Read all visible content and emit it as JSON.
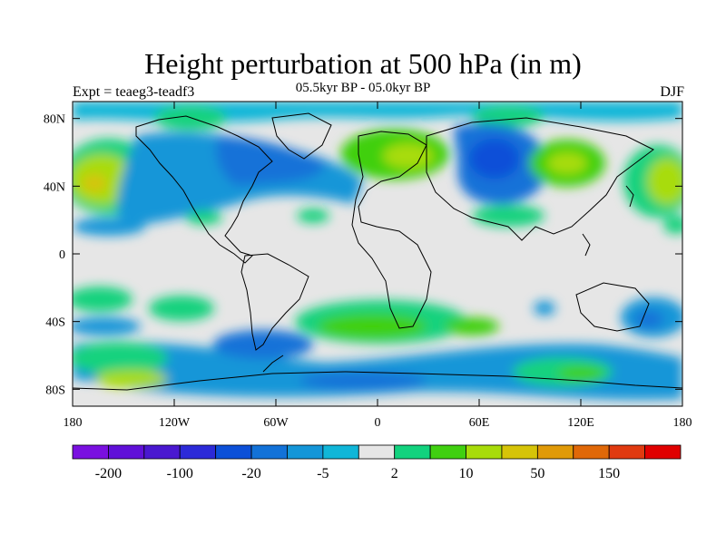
{
  "header": {
    "title": "Height perturbation at 500 hPa (in m)",
    "experiment": "Expt = teaeg3-teadf3",
    "period": "05.5kyr BP - 05.0kyr BP",
    "season": "DJF"
  },
  "map": {
    "variable": "500 hPa geopotential height anomaly",
    "projection": "cylindrical equidistant",
    "lon_range": [
      -180,
      180
    ],
    "lat_range": [
      -90,
      90
    ],
    "lat_ticks": [
      {
        "value": 80,
        "label": "80N"
      },
      {
        "value": 40,
        "label": "40N"
      },
      {
        "value": 0,
        "label": "0"
      },
      {
        "value": -40,
        "label": "40S"
      },
      {
        "value": -80,
        "label": "80S"
      }
    ],
    "lon_ticks": [
      {
        "value": -180,
        "label": "180"
      },
      {
        "value": -120,
        "label": "120W"
      },
      {
        "value": -60,
        "label": "60W"
      },
      {
        "value": 0,
        "label": "0"
      },
      {
        "value": 60,
        "label": "60E"
      },
      {
        "value": 120,
        "label": "120E"
      },
      {
        "value": 180,
        "label": "180"
      }
    ],
    "neutral_color": "#e6e6e6",
    "coastline_color": "#000000"
  },
  "colorbar": {
    "colors": [
      "#7a10e0",
      "#6010d8",
      "#4a18d0",
      "#2c2ad8",
      "#0c50d8",
      "#1272d8",
      "#1496d8",
      "#10b6d8",
      "#e6e6e6",
      "#12d27e",
      "#40d010",
      "#a8dc0a",
      "#d6c408",
      "#e09a08",
      "#e06808",
      "#e03a10",
      "#e00000"
    ],
    "labels": [
      {
        "boundary": 1,
        "text": "-200"
      },
      {
        "boundary": 3,
        "text": "-100"
      },
      {
        "boundary": 5,
        "text": "-20"
      },
      {
        "boundary": 7,
        "text": "-5"
      },
      {
        "boundary": 9,
        "text": "2"
      },
      {
        "boundary": 11,
        "text": "10"
      },
      {
        "boundary": 13,
        "text": "50"
      },
      {
        "boundary": 15,
        "text": "150"
      }
    ]
  }
}
